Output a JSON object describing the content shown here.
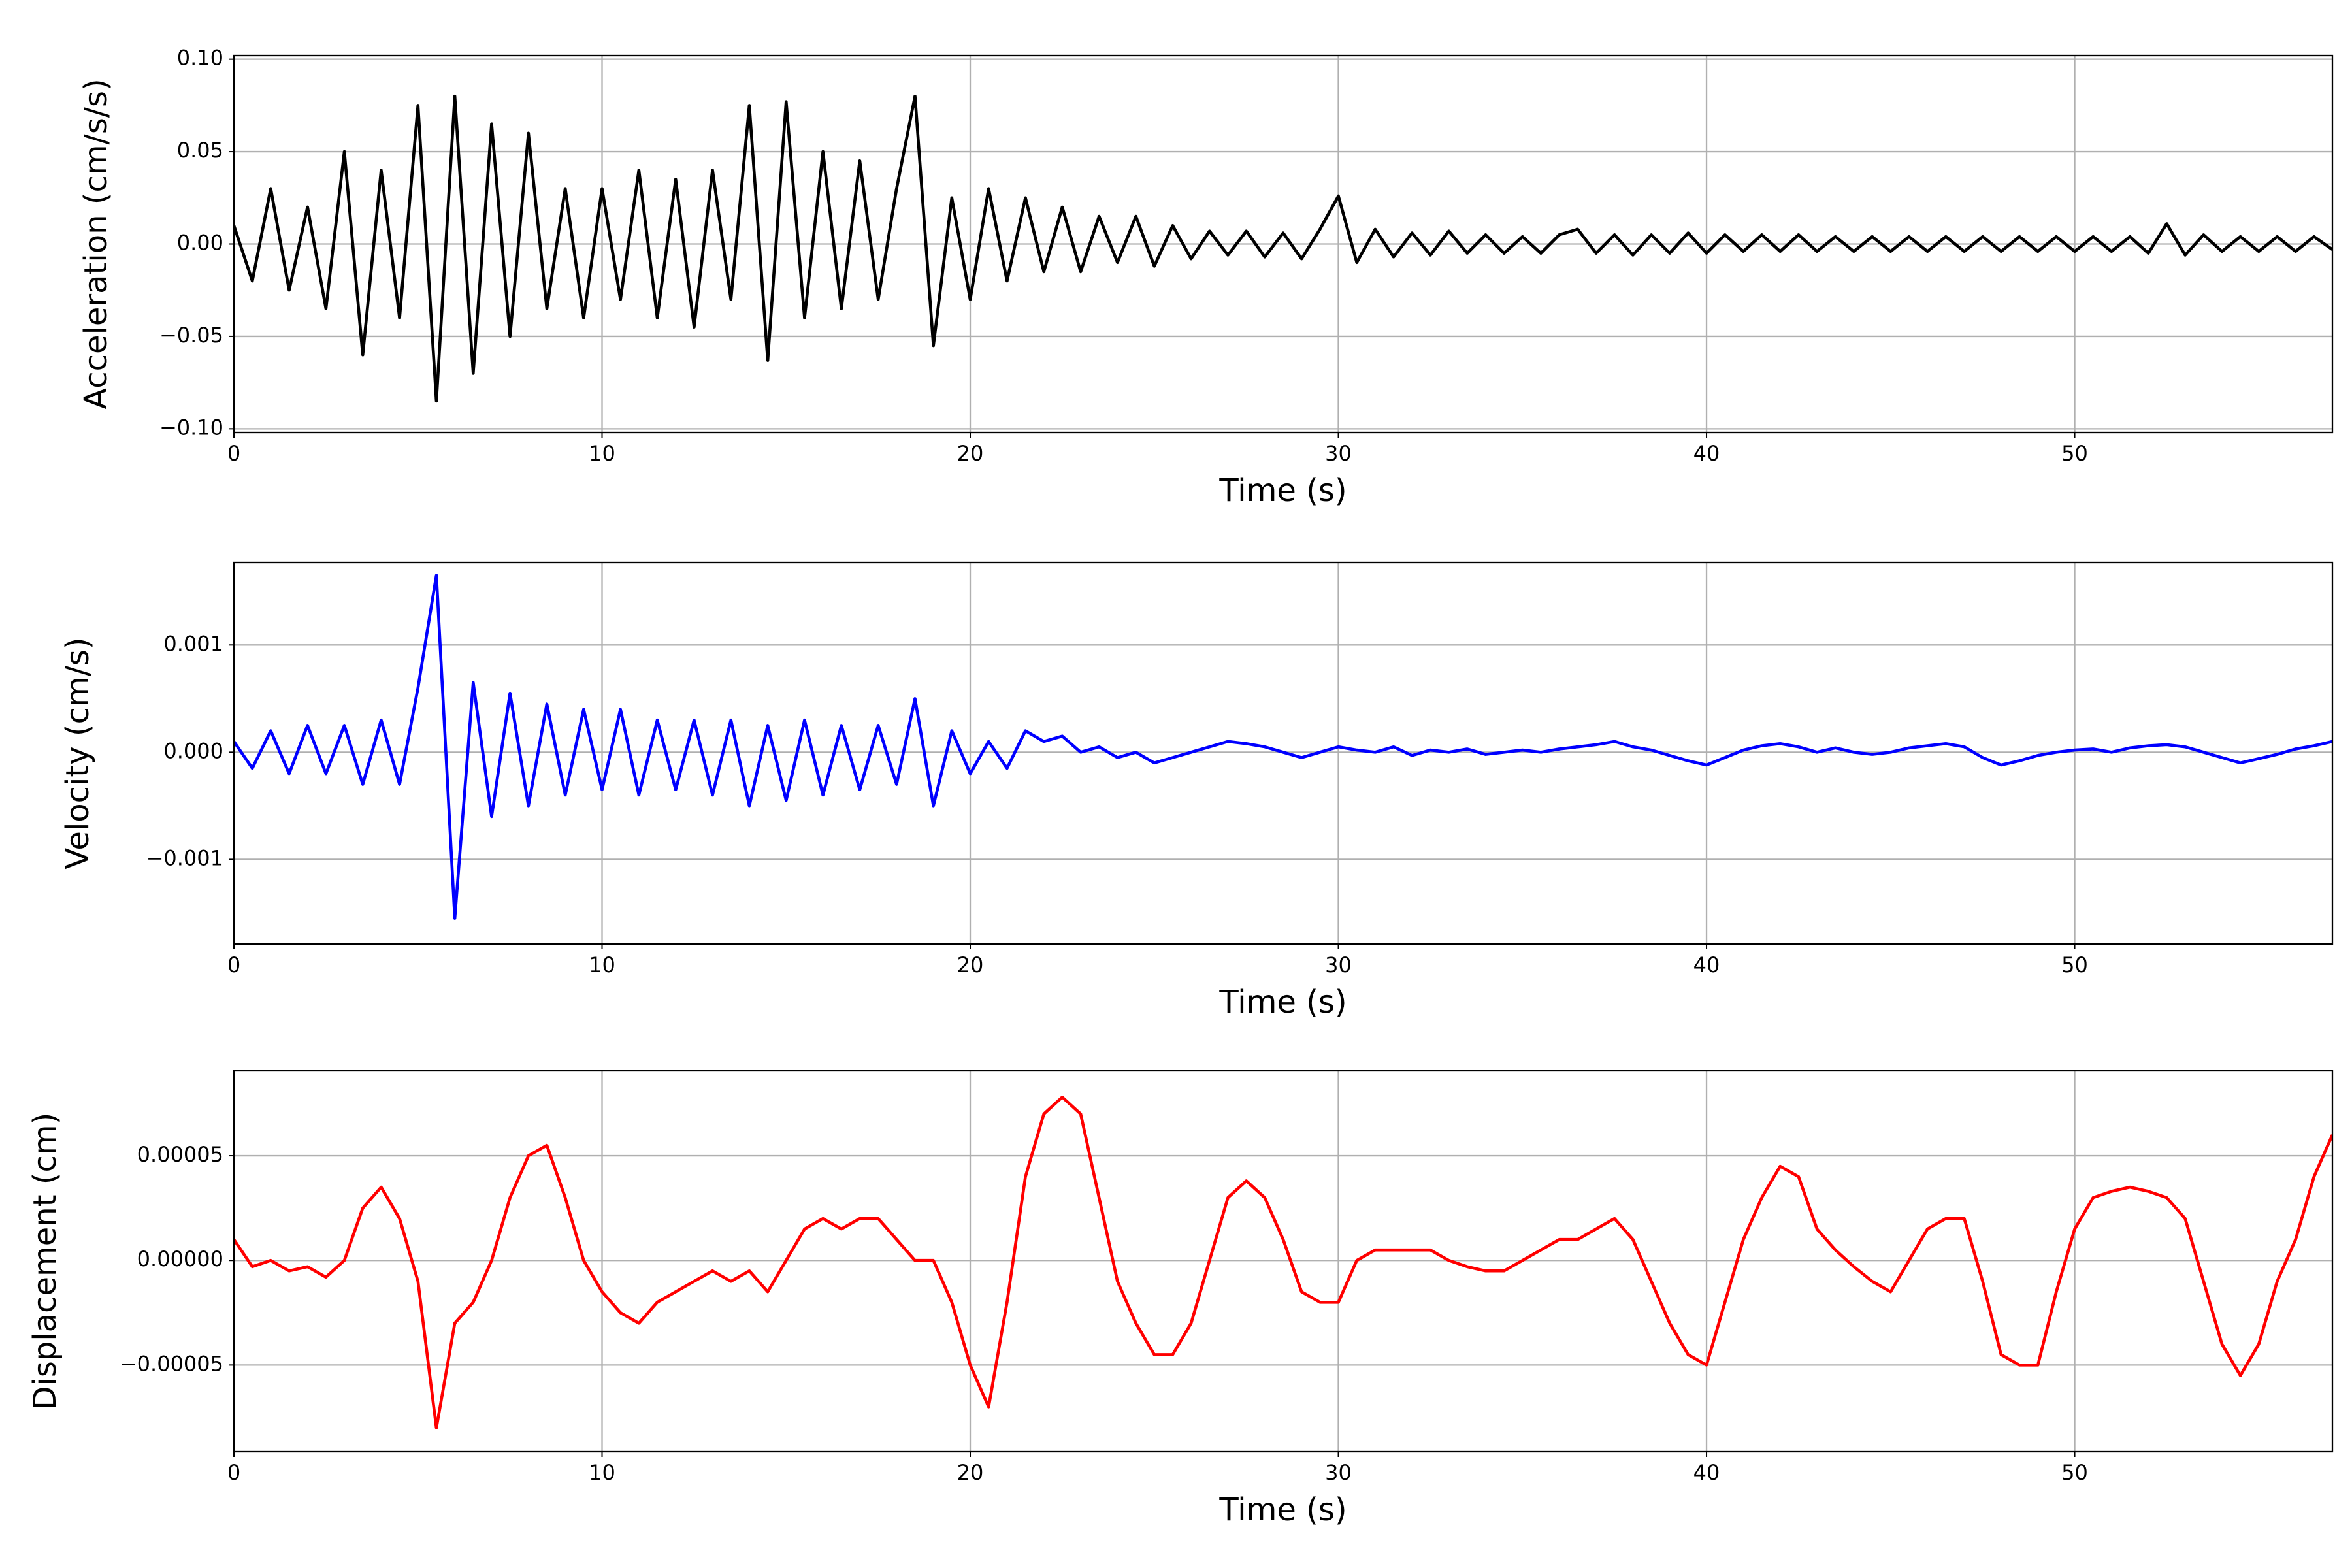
{
  "chart_data": [
    {
      "type": "line",
      "ylabel": "Acceleration (cm/s/s)",
      "xlabel": "Time (s)",
      "grid": true,
      "xlim": [
        0,
        57
      ],
      "xticks": [
        0,
        10,
        20,
        30,
        40,
        50
      ],
      "ylim": [
        -0.102,
        0.102
      ],
      "yticks": [
        {
          "value": -0.1,
          "label": "−0.10"
        },
        {
          "value": -0.05,
          "label": "−0.05"
        },
        {
          "value": 0,
          "label": "0.00"
        },
        {
          "value": 0.05,
          "label": "0.05"
        },
        {
          "value": 0.1,
          "label": "0.10"
        }
      ],
      "x": [
        0,
        0.5,
        1,
        1.5,
        2,
        2.5,
        3,
        3.5,
        4,
        4.5,
        5,
        5.5,
        6,
        6.5,
        7,
        7.5,
        8,
        8.5,
        9,
        9.5,
        10,
        10.5,
        11,
        11.5,
        12,
        12.5,
        13,
        13.5,
        14,
        14.5,
        15,
        15.5,
        16,
        16.5,
        17,
        17.5,
        18,
        18.5,
        19,
        19.5,
        20,
        20.5,
        21,
        21.5,
        22,
        22.5,
        23,
        23.5,
        24,
        24.5,
        25,
        25.5,
        26,
        26.5,
        27,
        27.5,
        28,
        28.5,
        29,
        29.5,
        30,
        30.5,
        31,
        31.5,
        32,
        32.5,
        33,
        33.5,
        34,
        34.5,
        35,
        35.5,
        36,
        36.5,
        37,
        37.5,
        38,
        38.5,
        39,
        39.5,
        40,
        40.5,
        41,
        41.5,
        42,
        42.5,
        43,
        43.5,
        44,
        44.5,
        45,
        45.5,
        46,
        46.5,
        47,
        47.5,
        48,
        48.5,
        49,
        49.5,
        50,
        50.5,
        51,
        51.5,
        52,
        52.5,
        53,
        53.5,
        54,
        54.5,
        55,
        55.5,
        56,
        56.5,
        57
      ],
      "series": [
        {
          "color": "#000000",
          "values": [
            0.01,
            -0.02,
            0.03,
            -0.025,
            0.02,
            -0.035,
            0.05,
            -0.06,
            0.04,
            -0.04,
            0.075,
            -0.085,
            0.08,
            -0.07,
            0.065,
            -0.05,
            0.06,
            -0.035,
            0.03,
            -0.04,
            0.03,
            -0.03,
            0.04,
            -0.04,
            0.035,
            -0.045,
            0.04,
            -0.03,
            0.075,
            -0.063,
            0.077,
            -0.04,
            0.05,
            -0.035,
            0.045,
            -0.03,
            0.03,
            0.08,
            -0.055,
            0.025,
            -0.03,
            0.03,
            -0.02,
            0.025,
            -0.015,
            0.02,
            -0.015,
            0.015,
            -0.01,
            0.015,
            -0.012,
            0.01,
            -0.008,
            0.007,
            -0.006,
            0.007,
            -0.007,
            0.006,
            -0.008,
            0.008,
            0.026,
            -0.01,
            0.008,
            -0.007,
            0.006,
            -0.006,
            0.007,
            -0.005,
            0.005,
            -0.005,
            0.004,
            -0.005,
            0.005,
            0.008,
            -0.005,
            0.005,
            -0.006,
            0.005,
            -0.005,
            0.006,
            -0.005,
            0.005,
            -0.004,
            0.005,
            -0.004,
            0.005,
            -0.004,
            0.004,
            -0.004,
            0.004,
            -0.004,
            0.004,
            -0.004,
            0.004,
            -0.004,
            0.004,
            -0.004,
            0.004,
            -0.004,
            0.004,
            -0.004,
            0.004,
            -0.004,
            0.004,
            -0.005,
            0.011,
            -0.006,
            0.005,
            -0.004,
            0.004,
            -0.004,
            0.004,
            -0.004,
            0.004,
            -0.003
          ]
        }
      ]
    },
    {
      "type": "line",
      "ylabel": "Velocity (cm/s)",
      "xlabel": "Time (s)",
      "grid": true,
      "xlim": [
        0,
        57
      ],
      "xticks": [
        0,
        10,
        20,
        30,
        40,
        50
      ],
      "ylim": [
        -0.00179,
        0.00177
      ],
      "yticks": [
        {
          "value": -0.001,
          "label": "−0.001"
        },
        {
          "value": 0,
          "label": "0.000"
        },
        0.001
      ],
      "x": [
        0,
        0.5,
        1,
        1.5,
        2,
        2.5,
        3,
        3.5,
        4,
        4.5,
        5,
        5.5,
        6,
        6.5,
        7,
        7.5,
        8,
        8.5,
        9,
        9.5,
        10,
        10.5,
        11,
        11.5,
        12,
        12.5,
        13,
        13.5,
        14,
        14.5,
        15,
        15.5,
        16,
        16.5,
        17,
        17.5,
        18,
        18.5,
        19,
        19.5,
        20,
        20.5,
        21,
        21.5,
        22,
        22.5,
        23,
        23.5,
        24,
        24.5,
        25,
        25.5,
        26,
        26.5,
        27,
        27.5,
        28,
        28.5,
        29,
        29.5,
        30,
        30.5,
        31,
        31.5,
        32,
        32.5,
        33,
        33.5,
        34,
        34.5,
        35,
        35.5,
        36,
        36.5,
        37,
        37.5,
        38,
        38.5,
        39,
        39.5,
        40,
        40.5,
        41,
        41.5,
        42,
        42.5,
        43,
        43.5,
        44,
        44.5,
        45,
        45.5,
        46,
        46.5,
        47,
        47.5,
        48,
        48.5,
        49,
        49.5,
        50,
        50.5,
        51,
        51.5,
        52,
        52.5,
        53,
        53.5,
        54,
        54.5,
        55,
        55.5,
        56,
        56.5,
        57
      ],
      "series": [
        {
          "color": "#0000ff",
          "values": [
            0.0001,
            -0.00015,
            0.0002,
            -0.0002,
            0.00025,
            -0.0002,
            0.00025,
            -0.0003,
            0.0003,
            -0.0003,
            0.0006,
            0.00165,
            -0.00155,
            0.00065,
            -0.0006,
            0.00055,
            -0.0005,
            0.00045,
            -0.0004,
            0.0004,
            -0.00035,
            0.0004,
            -0.0004,
            0.0003,
            -0.00035,
            0.0003,
            -0.0004,
            0.0003,
            -0.0005,
            0.00025,
            -0.00045,
            0.0003,
            -0.0004,
            0.00025,
            -0.00035,
            0.00025,
            -0.0003,
            0.0005,
            -0.0005,
            0.0002,
            -0.0002,
            0.0001,
            -0.00015,
            0.0002,
            0.0001,
            0.00015,
            0,
            5e-05,
            -5e-05,
            0,
            -0.0001,
            -5e-05,
            0,
            5e-05,
            0.0001,
            8e-05,
            5e-05,
            0,
            -5e-05,
            0,
            5e-05,
            2e-05,
            0,
            5e-05,
            -3e-05,
            2e-05,
            0,
            3e-05,
            -2e-05,
            0,
            2e-05,
            0,
            3e-05,
            5e-05,
            7e-05,
            0.0001,
            5e-05,
            2e-05,
            -3e-05,
            -8e-05,
            -0.00012,
            -5e-05,
            2e-05,
            6e-05,
            8e-05,
            5e-05,
            0,
            4e-05,
            0,
            -2e-05,
            0,
            4e-05,
            6e-05,
            8e-05,
            5e-05,
            -5e-05,
            -0.00012,
            -8e-05,
            -3e-05,
            0,
            2e-05,
            3e-05,
            0,
            4e-05,
            6e-05,
            7e-05,
            5e-05,
            0,
            -5e-05,
            -0.0001,
            -6e-05,
            -2e-05,
            3e-05,
            6e-05,
            0.0001
          ]
        }
      ]
    },
    {
      "type": "line",
      "ylabel": "Displacement (cm)",
      "xlabel": "Time (s)",
      "grid": true,
      "xlim": [
        0,
        57
      ],
      "xticks": [
        0,
        10,
        20,
        30,
        40,
        50
      ],
      "ylim": [
        -9.14e-05,
        9.06e-05
      ],
      "yticks": [
        {
          "value": -5e-05,
          "label": "−0.00005"
        },
        {
          "value": 0,
          "label": "0.00000"
        },
        5e-05
      ],
      "x": [
        0,
        0.5,
        1,
        1.5,
        2,
        2.5,
        3,
        3.5,
        4,
        4.5,
        5,
        5.5,
        6,
        6.5,
        7,
        7.5,
        8,
        8.5,
        9,
        9.5,
        10,
        10.5,
        11,
        11.5,
        12,
        12.5,
        13,
        13.5,
        14,
        14.5,
        15,
        15.5,
        16,
        16.5,
        17,
        17.5,
        18,
        18.5,
        19,
        19.5,
        20,
        20.5,
        21,
        21.5,
        22,
        22.5,
        23,
        23.5,
        24,
        24.5,
        25,
        25.5,
        26,
        26.5,
        27,
        27.5,
        28,
        28.5,
        29,
        29.5,
        30,
        30.5,
        31,
        31.5,
        32,
        32.5,
        33,
        33.5,
        34,
        34.5,
        35,
        35.5,
        36,
        36.5,
        37,
        37.5,
        38,
        38.5,
        39,
        39.5,
        40,
        40.5,
        41,
        41.5,
        42,
        42.5,
        43,
        43.5,
        44,
        44.5,
        45,
        45.5,
        46,
        46.5,
        47,
        47.5,
        48,
        48.5,
        49,
        49.5,
        50,
        50.5,
        51,
        51.5,
        52,
        52.5,
        53,
        53.5,
        54,
        54.5,
        55,
        55.5,
        56,
        56.5,
        57
      ],
      "series": [
        {
          "color": "#ff0000",
          "values": [
            1e-05,
            -3e-06,
            0,
            -5e-06,
            -3e-06,
            -8e-06,
            0,
            2.5e-05,
            3.5e-05,
            2e-05,
            -1e-05,
            -8e-05,
            -3e-05,
            -2e-05,
            0,
            3e-05,
            5e-05,
            5.5e-05,
            3e-05,
            0,
            -1.5e-05,
            -2.5e-05,
            -3e-05,
            -2e-05,
            -1.5e-05,
            -1e-05,
            -5e-06,
            -1e-05,
            -5e-06,
            -1.5e-05,
            0,
            1.5e-05,
            2e-05,
            1.5e-05,
            2e-05,
            2e-05,
            1e-05,
            0,
            0,
            -2e-05,
            -5e-05,
            -7e-05,
            -2e-05,
            4e-05,
            7e-05,
            7.8e-05,
            7e-05,
            3e-05,
            -1e-05,
            -3e-05,
            -4.5e-05,
            -4.5e-05,
            -3e-05,
            0,
            3e-05,
            3.8e-05,
            3e-05,
            1e-05,
            -1.5e-05,
            -2e-05,
            -2e-05,
            0,
            5e-06,
            5e-06,
            5e-06,
            5e-06,
            0,
            -3e-06,
            -5e-06,
            -5e-06,
            0,
            5e-06,
            1e-05,
            1e-05,
            1.5e-05,
            2e-05,
            1e-05,
            -1e-05,
            -3e-05,
            -4.5e-05,
            -5e-05,
            -2e-05,
            1e-05,
            3e-05,
            4.5e-05,
            4e-05,
            1.5e-05,
            5e-06,
            -3e-06,
            -1e-05,
            -1.5e-05,
            0,
            1.5e-05,
            2e-05,
            2e-05,
            -1e-05,
            -4.5e-05,
            -5e-05,
            -5e-05,
            -1.5e-05,
            1.5e-05,
            3e-05,
            3.3e-05,
            3.5e-05,
            3.3e-05,
            3e-05,
            2e-05,
            -1e-05,
            -4e-05,
            -5.5e-05,
            -4e-05,
            -1e-05,
            1e-05,
            4e-05,
            6e-05
          ]
        }
      ]
    }
  ]
}
